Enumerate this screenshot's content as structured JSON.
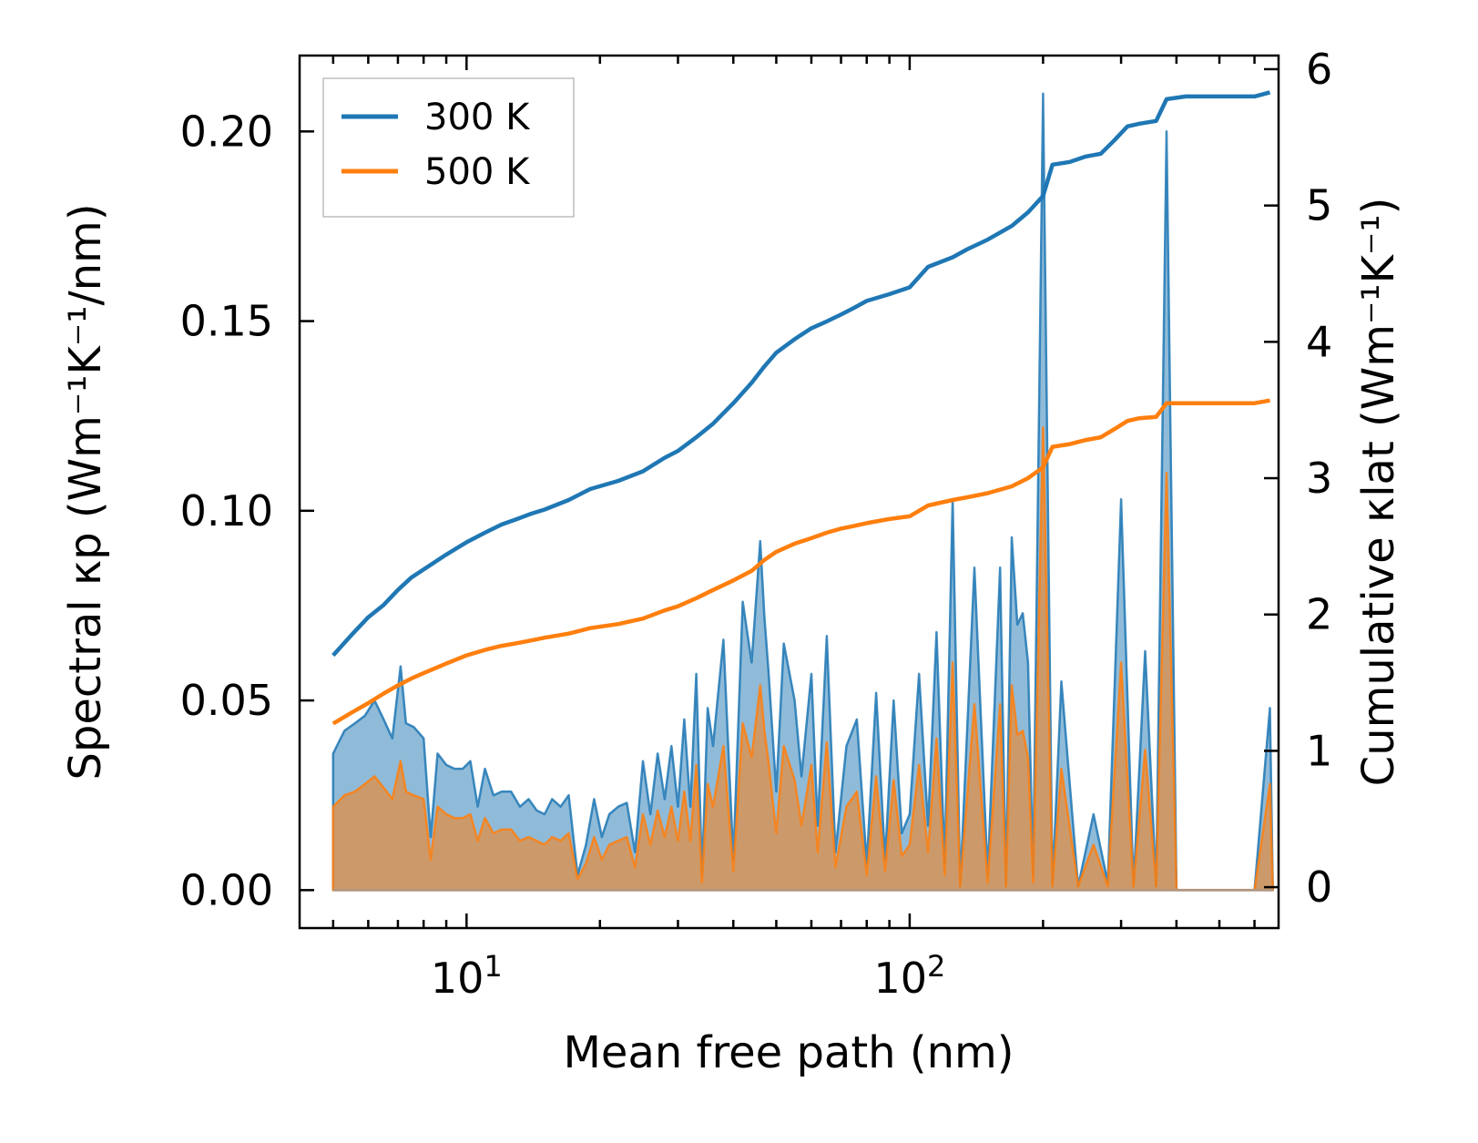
{
  "chart_data": {
    "type": "line",
    "title": "",
    "xlabel": "Mean free path (nm)",
    "xscale": "log",
    "xlim": [
      4.2,
      680
    ],
    "ylabel_left": "Spectral κp (Wm⁻¹K⁻¹/nm)",
    "ylim_left": [
      -0.01,
      0.22
    ],
    "ylabel_right": "Cumulative κlat (Wm⁻¹K⁻¹)",
    "ylim_right": [
      -0.3,
      6.1
    ],
    "x_tick_labels": [
      {
        "value": 10,
        "base": "10",
        "exp": "1"
      },
      {
        "value": 100,
        "base": "10",
        "exp": "2"
      }
    ],
    "y_left_ticks": [
      0,
      0.05,
      0.1,
      0.15,
      0.2
    ],
    "y_left_tick_labels": [
      "0.00",
      "0.05",
      "0.10",
      "0.15",
      "0.20"
    ],
    "y_right_ticks": [
      0,
      1,
      2,
      3,
      4,
      5,
      6
    ],
    "y_right_tick_labels": [
      "0",
      "1",
      "2",
      "3",
      "4",
      "5",
      "6"
    ],
    "legend_position": "top-left",
    "legend": [
      {
        "name": "300 K",
        "color": "#1f77b4"
      },
      {
        "name": "500 K",
        "color": "#ff7f0e"
      }
    ],
    "series": [
      {
        "name": "300 K",
        "color": "#1f77b4",
        "cumulative_right_axis": {
          "x": [
            5,
            5.5,
            6,
            6.5,
            7,
            7.5,
            8,
            9,
            10,
            11,
            12,
            13,
            14,
            15,
            17,
            19,
            22,
            25,
            28,
            30,
            33,
            36,
            40,
            44,
            47,
            50,
            55,
            60,
            65,
            70,
            75,
            80,
            90,
            100,
            110,
            125,
            135,
            150,
            170,
            185,
            200,
            210,
            230,
            250,
            270,
            290,
            310,
            330,
            360,
            380,
            420,
            500,
            600,
            650
          ],
          "y": [
            1.7,
            1.85,
            1.98,
            2.07,
            2.18,
            2.27,
            2.33,
            2.44,
            2.53,
            2.6,
            2.66,
            2.7,
            2.74,
            2.77,
            2.84,
            2.92,
            2.98,
            3.05,
            3.15,
            3.2,
            3.3,
            3.4,
            3.55,
            3.7,
            3.82,
            3.92,
            4.02,
            4.1,
            4.15,
            4.2,
            4.25,
            4.3,
            4.35,
            4.4,
            4.55,
            4.62,
            4.68,
            4.75,
            4.85,
            4.95,
            5.07,
            5.3,
            5.32,
            5.36,
            5.38,
            5.48,
            5.58,
            5.6,
            5.62,
            5.78,
            5.8,
            5.8,
            5.8,
            5.83
          ]
        },
        "spectral_left_axis": {
          "x": [
            5,
            5.3,
            5.6,
            5.9,
            6.2,
            6.5,
            6.8,
            7.1,
            7.3,
            7.6,
            8,
            8.3,
            8.6,
            9,
            9.4,
            9.8,
            10.2,
            10.6,
            11,
            11.5,
            12,
            12.6,
            13.2,
            13.8,
            14.4,
            15,
            15.6,
            16.3,
            17,
            17.8,
            18.6,
            19.4,
            20.2,
            21,
            22,
            23,
            24,
            25,
            26,
            27,
            28,
            29,
            30,
            31,
            32,
            33,
            34,
            35,
            36,
            38,
            40,
            42,
            44,
            46,
            47,
            48,
            50,
            52,
            55,
            57,
            60,
            62,
            65,
            68,
            72,
            76,
            80,
            84,
            88,
            92,
            96,
            100,
            105,
            110,
            115,
            120,
            125,
            130,
            140,
            150,
            160,
            165,
            170,
            175,
            180,
            185,
            190,
            200,
            210,
            220,
            240,
            260,
            280,
            300,
            320,
            340,
            360,
            380,
            400,
            500,
            600,
            650,
            660
          ],
          "y": [
            0.036,
            0.042,
            0.044,
            0.046,
            0.05,
            0.045,
            0.04,
            0.059,
            0.044,
            0.043,
            0.04,
            0.014,
            0.036,
            0.033,
            0.032,
            0.032,
            0.034,
            0.022,
            0.032,
            0.025,
            0.026,
            0.026,
            0.022,
            0.024,
            0.021,
            0.02,
            0.024,
            0.022,
            0.025,
            0.004,
            0.012,
            0.024,
            0.014,
            0.02,
            0.022,
            0.023,
            0.01,
            0.034,
            0.02,
            0.036,
            0.024,
            0.038,
            0.022,
            0.045,
            0.022,
            0.057,
            0.004,
            0.048,
            0.038,
            0.066,
            0.008,
            0.076,
            0.06,
            0.092,
            0.072,
            0.058,
            0.026,
            0.065,
            0.05,
            0.03,
            0.057,
            0.017,
            0.067,
            0.01,
            0.038,
            0.045,
            0.007,
            0.052,
            0.008,
            0.05,
            0.015,
            0.02,
            0.057,
            0.017,
            0.068,
            0.007,
            0.103,
            0.001,
            0.085,
            0.004,
            0.085,
            0.001,
            0.093,
            0.07,
            0.073,
            0.06,
            0.004,
            0.21,
            0.001,
            0.055,
            0.001,
            0.02,
            0.002,
            0.103,
            0.001,
            0.063,
            0.001,
            0.2,
            0.0,
            0.0,
            0.0,
            0.048,
            0.0
          ]
        }
      },
      {
        "name": "500 K",
        "color": "#ff7f0e",
        "cumulative_right_axis": {
          "x": [
            5,
            5.5,
            6,
            6.5,
            7,
            7.5,
            8,
            9,
            10,
            11,
            12,
            13,
            14,
            15,
            17,
            19,
            22,
            25,
            28,
            30,
            33,
            36,
            40,
            44,
            47,
            50,
            55,
            60,
            65,
            70,
            75,
            80,
            90,
            100,
            110,
            125,
            135,
            150,
            170,
            185,
            200,
            210,
            230,
            250,
            270,
            290,
            310,
            330,
            360,
            380,
            420,
            500,
            600,
            650
          ],
          "y": [
            1.2,
            1.28,
            1.35,
            1.42,
            1.48,
            1.53,
            1.57,
            1.64,
            1.7,
            1.74,
            1.77,
            1.79,
            1.81,
            1.83,
            1.86,
            1.9,
            1.93,
            1.97,
            2.03,
            2.06,
            2.12,
            2.18,
            2.25,
            2.32,
            2.4,
            2.46,
            2.52,
            2.56,
            2.6,
            2.63,
            2.65,
            2.67,
            2.7,
            2.72,
            2.8,
            2.84,
            2.86,
            2.89,
            2.94,
            3.0,
            3.08,
            3.23,
            3.25,
            3.28,
            3.3,
            3.36,
            3.42,
            3.44,
            3.45,
            3.55,
            3.55,
            3.55,
            3.55,
            3.57
          ]
        },
        "spectral_left_axis": {
          "x": [
            5,
            5.3,
            5.6,
            5.9,
            6.2,
            6.5,
            6.8,
            7.1,
            7.3,
            7.6,
            8,
            8.3,
            8.6,
            9,
            9.4,
            9.8,
            10.2,
            10.6,
            11,
            11.5,
            12,
            12.6,
            13.2,
            13.8,
            14.4,
            15,
            15.6,
            16.3,
            17,
            17.8,
            18.6,
            19.4,
            20.2,
            21,
            22,
            23,
            24,
            25,
            26,
            27,
            28,
            29,
            30,
            31,
            32,
            33,
            34,
            35,
            36,
            38,
            40,
            42,
            44,
            46,
            47,
            48,
            50,
            52,
            55,
            57,
            60,
            62,
            65,
            68,
            72,
            76,
            80,
            84,
            88,
            92,
            96,
            100,
            105,
            110,
            115,
            120,
            125,
            130,
            140,
            150,
            160,
            165,
            170,
            175,
            180,
            185,
            190,
            200,
            210,
            220,
            240,
            260,
            280,
            300,
            320,
            340,
            360,
            380,
            400,
            500,
            600,
            650,
            660
          ],
          "y": [
            0.022,
            0.025,
            0.026,
            0.028,
            0.03,
            0.027,
            0.024,
            0.034,
            0.026,
            0.025,
            0.024,
            0.008,
            0.022,
            0.02,
            0.019,
            0.019,
            0.02,
            0.013,
            0.019,
            0.015,
            0.016,
            0.016,
            0.013,
            0.014,
            0.013,
            0.012,
            0.014,
            0.013,
            0.015,
            0.003,
            0.007,
            0.014,
            0.008,
            0.012,
            0.013,
            0.014,
            0.006,
            0.02,
            0.012,
            0.021,
            0.014,
            0.022,
            0.013,
            0.026,
            0.013,
            0.033,
            0.002,
            0.028,
            0.022,
            0.038,
            0.005,
            0.044,
            0.035,
            0.054,
            0.042,
            0.034,
            0.015,
            0.038,
            0.029,
            0.017,
            0.033,
            0.01,
            0.039,
            0.006,
            0.022,
            0.026,
            0.004,
            0.03,
            0.005,
            0.029,
            0.009,
            0.012,
            0.033,
            0.01,
            0.04,
            0.004,
            0.06,
            0.001,
            0.049,
            0.002,
            0.049,
            0.001,
            0.054,
            0.041,
            0.042,
            0.035,
            0.002,
            0.122,
            0.001,
            0.032,
            0.001,
            0.012,
            0.001,
            0.06,
            0.001,
            0.037,
            0.001,
            0.11,
            0.0,
            0.0,
            0.0,
            0.028,
            0.0
          ]
        }
      }
    ]
  }
}
